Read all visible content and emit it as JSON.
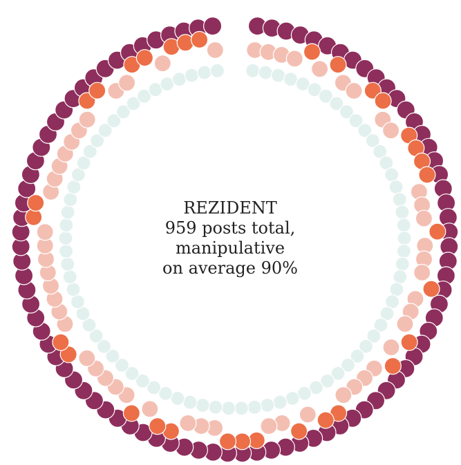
{
  "chart_data": {
    "type": "radial-dot",
    "title_lines": [
      "REZIDENT",
      "959 posts total,",
      "manipulative",
      "on average 90%"
    ],
    "rings": [
      {
        "level": "outer",
        "count": 90,
        "color": "#8e2e5c"
      },
      {
        "level": "mid",
        "count": 86,
        "color": "#f4bfb3",
        "highlight_color": "#ec6f47",
        "highlight_count": 32
      },
      {
        "level": "inner",
        "count": 80,
        "color": "#e3f1ee",
        "stroke": "#8fa6a2"
      }
    ]
  }
}
